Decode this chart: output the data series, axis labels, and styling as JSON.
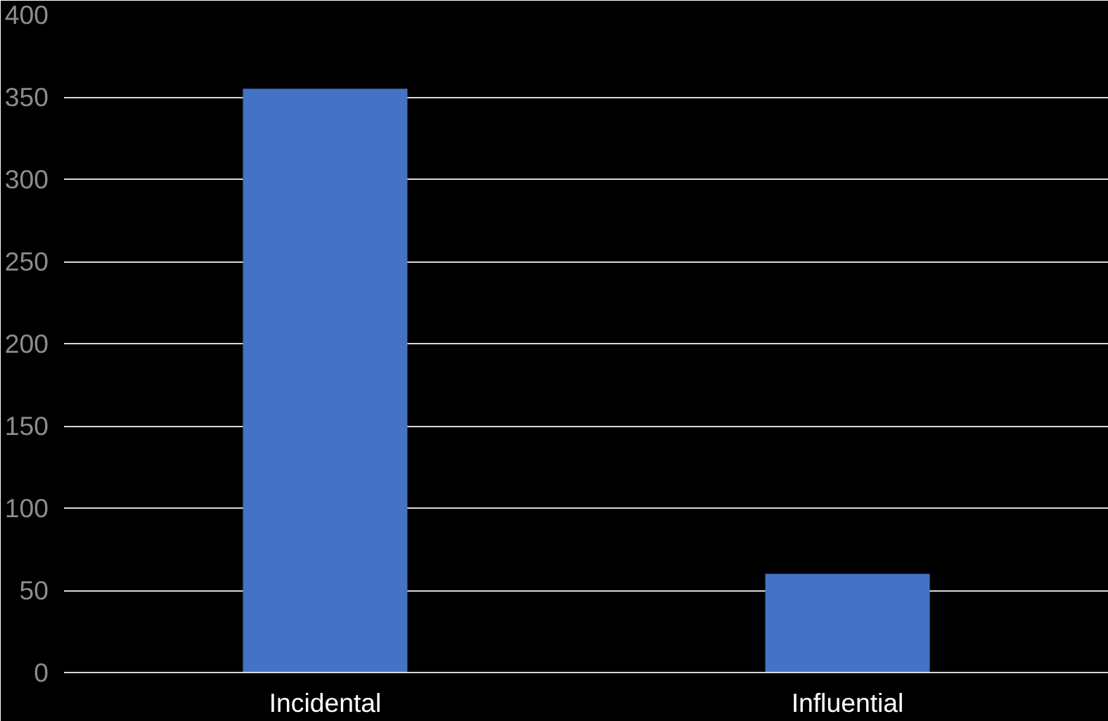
{
  "chart_data": {
    "type": "bar",
    "categories": [
      "Incidental",
      "Influential"
    ],
    "values": [
      355,
      60
    ],
    "color": "#4472c4",
    "ylim": [
      0,
      400
    ],
    "yticks": [
      0,
      50,
      100,
      150,
      200,
      250,
      300,
      350,
      400
    ],
    "grid": "y"
  }
}
